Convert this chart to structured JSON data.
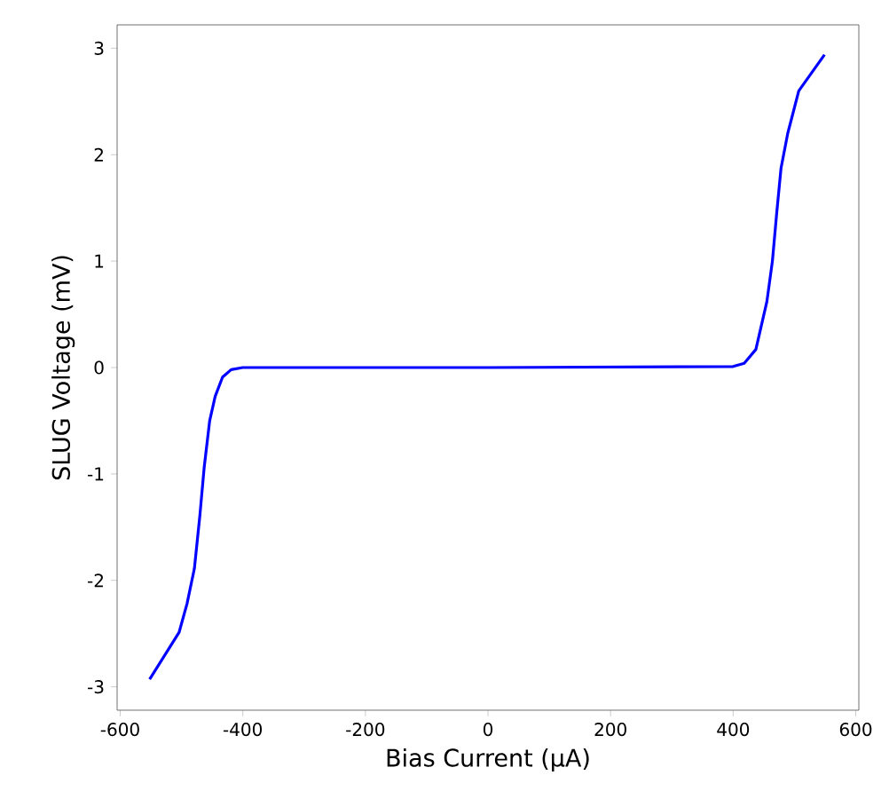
{
  "chart_data": {
    "type": "line",
    "xlabel": "Bias Current (μA)",
    "ylabel": "SLUG Voltage (mV)",
    "xlim": [
      -605,
      605
    ],
    "ylim": [
      -3.22,
      3.22
    ],
    "xticks": [
      -600,
      -400,
      -200,
      0,
      200,
      400,
      600
    ],
    "yticks": [
      -3,
      -2,
      -1,
      0,
      1,
      2,
      3
    ],
    "grid": false,
    "marker": "none",
    "line_style": "solid",
    "series": [
      {
        "color": "#0000ff",
        "x": [
          -552,
          -504,
          -491,
          -479,
          -470,
          -463,
          -454,
          -445,
          -433,
          -419,
          -400,
          0,
          400,
          418,
          437,
          455,
          464,
          471,
          478,
          489,
          507,
          549
        ],
        "values": [
          -2.93,
          -2.49,
          -2.22,
          -1.89,
          -1.39,
          -0.94,
          -0.5,
          -0.27,
          -0.09,
          -0.02,
          0,
          0,
          0.01,
          0.04,
          0.17,
          0.62,
          1.0,
          1.45,
          1.87,
          2.2,
          2.6,
          2.94
        ]
      }
    ]
  }
}
